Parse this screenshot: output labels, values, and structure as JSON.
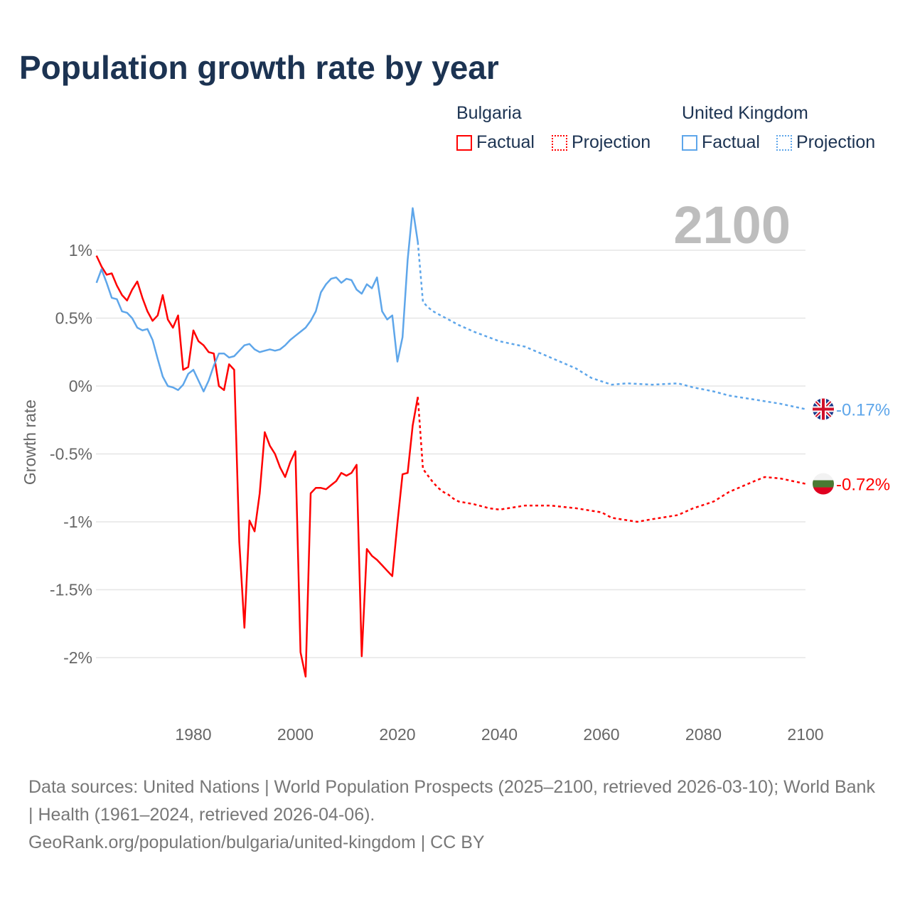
{
  "title": "Population growth rate by year",
  "legend": {
    "groups": [
      {
        "name": "Bulgaria",
        "color": "#ff0000",
        "factual": "Factual",
        "projection": "Projection"
      },
      {
        "name": "United Kingdom",
        "color": "#5ea6ea",
        "factual": "Factual",
        "projection": "Projection"
      }
    ]
  },
  "year_label": "2100",
  "footer": {
    "sources": "Data sources: United Nations | World Population Prospects (2025–2100, retrieved 2026-03-10); World Bank | Health (1961–2024, retrieved 2026-04-06).",
    "link": "GeoRank.org/population/bulgaria/united-kingdom | CC BY"
  },
  "chart_data": {
    "type": "line",
    "title": "Population growth rate by year",
    "xlabel": "",
    "ylabel": "Growth rate",
    "xlim": [
      1961,
      2100
    ],
    "ylim": [
      -2.3,
      1.4
    ],
    "x_ticks": [
      1980,
      2000,
      2020,
      2040,
      2060,
      2080,
      2100
    ],
    "x_tick_labels": [
      "1980",
      "2000",
      "2020",
      "2040",
      "2060",
      "2080",
      "2100"
    ],
    "y_ticks": [
      1,
      0.5,
      0,
      -0.5,
      -1,
      -1.5,
      -2
    ],
    "y_tick_labels": [
      "1%",
      "0.5%",
      "0%",
      "-0.5%",
      "-1%",
      "-1.5%",
      "-2%"
    ],
    "grid": true,
    "legend_position": "top-right",
    "series": [
      {
        "name": "Bulgaria",
        "color": "#ff0000",
        "end_label": "-0.72%",
        "factual": {
          "x_start": 1961,
          "values": [
            0.96,
            0.88,
            0.82,
            0.83,
            0.74,
            0.67,
            0.63,
            0.71,
            0.77,
            0.65,
            0.55,
            0.48,
            0.52,
            0.67,
            0.49,
            0.43,
            0.52,
            0.12,
            0.14,
            0.41,
            0.33,
            0.3,
            0.25,
            0.24,
            0.0,
            -0.03,
            0.16,
            0.12,
            -1.15,
            -1.78,
            -0.99,
            -1.07,
            -0.79,
            -0.34,
            -0.44,
            -0.5,
            -0.6,
            -0.67,
            -0.56,
            -0.48,
            -1.96,
            -2.14,
            -0.79,
            -0.75,
            -0.75,
            -0.76,
            -0.73,
            -0.7,
            -0.64,
            -0.66,
            -0.64,
            -0.58,
            -1.99,
            -1.2,
            -1.25,
            -1.28,
            -1.32,
            -1.36,
            -1.4,
            -1.01,
            -0.65,
            -0.64,
            -0.29,
            -0.08
          ]
        },
        "projection": {
          "x": [
            2024,
            2025,
            2026,
            2027,
            2028,
            2029,
            2030,
            2031,
            2032,
            2035,
            2038,
            2040,
            2045,
            2050,
            2055,
            2060,
            2062,
            2067,
            2070,
            2075,
            2078,
            2082,
            2085,
            2090,
            2092,
            2095,
            2100
          ],
          "values": [
            -0.08,
            -0.61,
            -0.66,
            -0.71,
            -0.75,
            -0.78,
            -0.8,
            -0.83,
            -0.85,
            -0.87,
            -0.9,
            -0.91,
            -0.88,
            -0.88,
            -0.9,
            -0.93,
            -0.97,
            -1.0,
            -0.98,
            -0.95,
            -0.9,
            -0.85,
            -0.78,
            -0.7,
            -0.67,
            -0.68,
            -0.72
          ]
        }
      },
      {
        "name": "United Kingdom",
        "color": "#5ea6ea",
        "end_label": "-0.17%",
        "factual": {
          "x_start": 1961,
          "values": [
            0.76,
            0.86,
            0.76,
            0.65,
            0.64,
            0.55,
            0.54,
            0.5,
            0.43,
            0.41,
            0.42,
            0.34,
            0.2,
            0.07,
            0.0,
            -0.01,
            -0.03,
            0.01,
            0.09,
            0.12,
            0.04,
            -0.04,
            0.04,
            0.15,
            0.24,
            0.24,
            0.21,
            0.22,
            0.26,
            0.3,
            0.31,
            0.27,
            0.25,
            0.26,
            0.27,
            0.26,
            0.27,
            0.3,
            0.34,
            0.37,
            0.4,
            0.43,
            0.48,
            0.55,
            0.69,
            0.75,
            0.79,
            0.8,
            0.76,
            0.79,
            0.78,
            0.71,
            0.68,
            0.75,
            0.72,
            0.8,
            0.55,
            0.49,
            0.52,
            0.18,
            0.36,
            0.93,
            1.31,
            1.06
          ]
        },
        "projection": {
          "x": [
            2024,
            2025,
            2026,
            2027,
            2028,
            2030,
            2032,
            2035,
            2040,
            2045,
            2050,
            2055,
            2058,
            2062,
            2065,
            2070,
            2075,
            2078,
            2082,
            2085,
            2090,
            2095,
            2100
          ],
          "values": [
            1.06,
            0.62,
            0.58,
            0.55,
            0.53,
            0.49,
            0.45,
            0.4,
            0.33,
            0.29,
            0.21,
            0.13,
            0.06,
            0.01,
            0.02,
            0.01,
            0.02,
            -0.01,
            -0.04,
            -0.07,
            -0.1,
            -0.13,
            -0.17
          ]
        }
      }
    ]
  }
}
